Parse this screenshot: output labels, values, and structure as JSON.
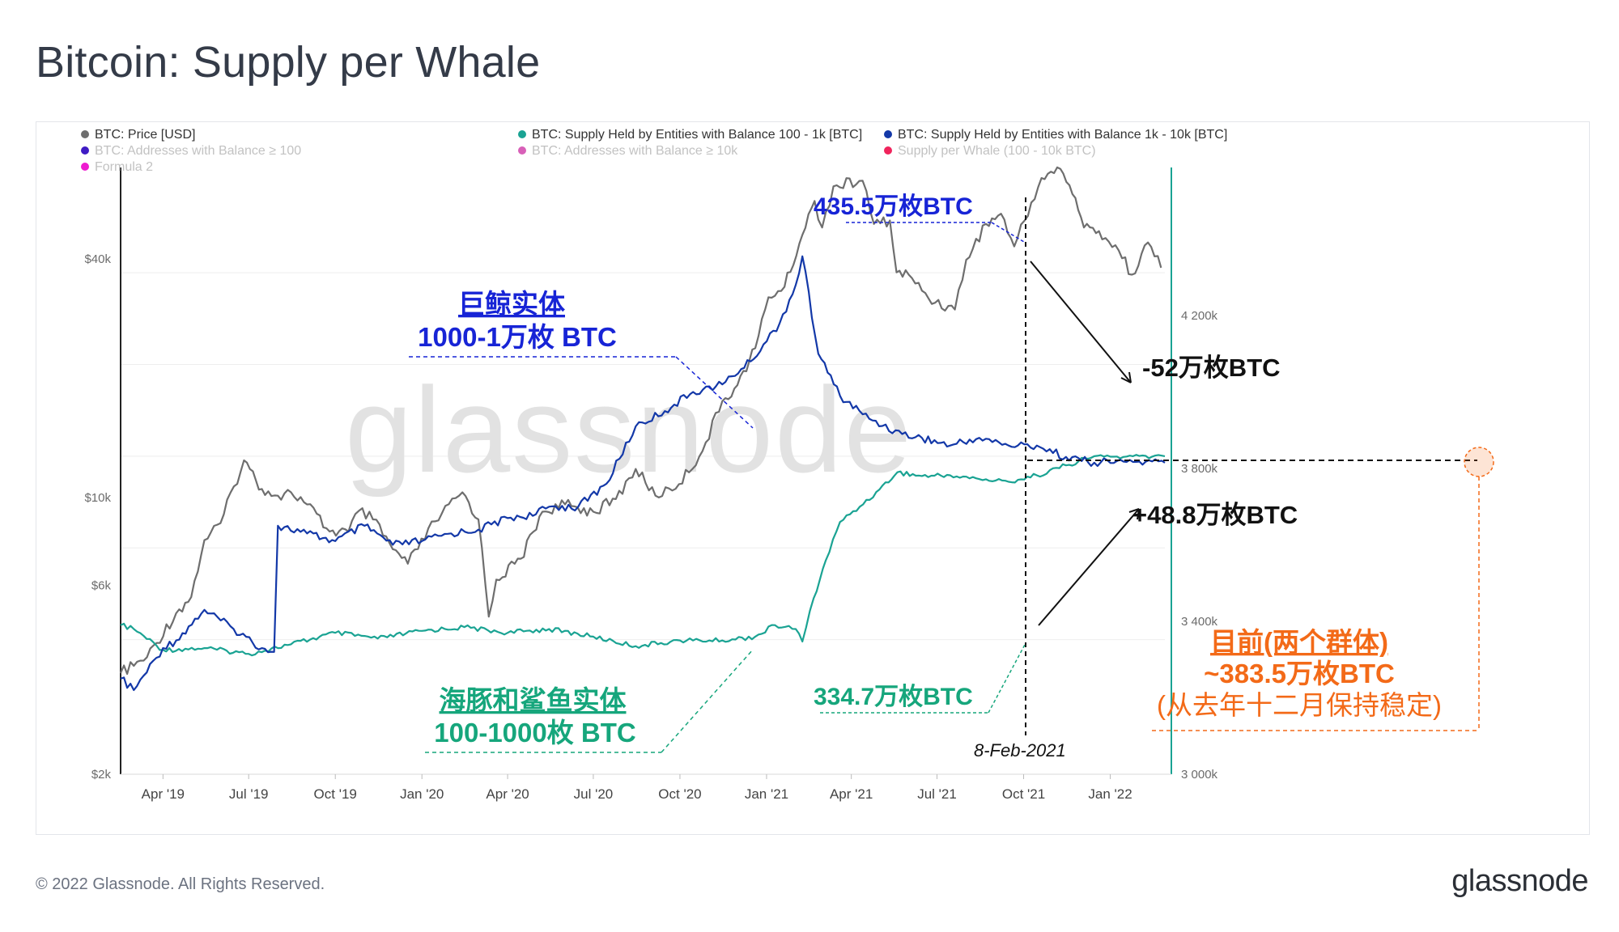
{
  "title": "Bitcoin: Supply per Whale",
  "footer": {
    "copyright": "© 2022 Glassnode. All Rights Reserved.",
    "logo_text": "glassnode"
  },
  "watermark": "glassnode",
  "colors": {
    "price": "#6e6e6e",
    "supply_small": "#1aa393",
    "supply_large": "#1338a8",
    "addr100": "#3f1bc4",
    "addr10k": "#d860b8",
    "supply_per_whale": "#f0245c",
    "formula2": "#ee1bd0",
    "annot_blue": "#1724d6",
    "annot_green": "#16a67c",
    "annot_orange": "#f36a18",
    "right_axis": "#1aa393"
  },
  "legend": [
    {
      "label": "BTC: Price [USD]",
      "color": "#6e6e6e",
      "active": true,
      "icon": "circle-dot-icon"
    },
    {
      "label": "BTC: Supply Held by Entities with Balance 100 - 1k [BTC]",
      "color": "#1aa393",
      "active": true,
      "icon": "circle-dot-icon"
    },
    {
      "label": "BTC: Supply Held by Entities with Balance 1k - 10k [BTC]",
      "color": "#1338a8",
      "active": true,
      "icon": "circle-dot-icon"
    },
    {
      "label": "BTC: Addresses with Balance ≥ 100",
      "color": "#3f1bc4",
      "active": false,
      "icon": "circle-dot-icon"
    },
    {
      "label": "BTC: Addresses with Balance ≥ 10k",
      "color": "#d860b8",
      "active": false,
      "icon": "circle-dot-icon"
    },
    {
      "label": "Supply per Whale (100 - 10k BTC)",
      "color": "#f0245c",
      "active": false,
      "icon": "circle-dot-icon"
    },
    {
      "label": "Formula 2",
      "color": "#ee1bd0",
      "active": false,
      "icon": "circle-dot-icon"
    }
  ],
  "annotations": {
    "peak_large": "435.5万枚BTC",
    "whale_title": "巨鲸实体",
    "whale_range": "1000-1万枚 BTC",
    "drop_large": "-52万枚BTC",
    "rise_small": "+48.8万枚BTC",
    "small_level": "334.7万枚BTC",
    "dolphin_title": "海豚和鲨鱼实体",
    "dolphin_range": "100-1000枚 BTC",
    "current_title": "目前(两个群体)",
    "current_value": "~383.5万枚BTC",
    "current_note": "(从去年十二月保持稳定)",
    "date_marker": "8-Feb-2021"
  },
  "chart_data": {
    "type": "line",
    "x_ticks": [
      "Apr '19",
      "Jul '19",
      "Oct '19",
      "Jan '20",
      "Apr '20",
      "Jul '20",
      "Oct '20",
      "Jan '21",
      "Apr '21",
      "Jul '21",
      "Oct '21",
      "Jan '22"
    ],
    "x_tick_dates": [
      "2019-04-01",
      "2019-07-01",
      "2019-10-01",
      "2020-01-01",
      "2020-04-01",
      "2020-07-01",
      "2020-10-01",
      "2021-01-01",
      "2021-04-01",
      "2021-07-01",
      "2021-10-01",
      "2022-01-01"
    ],
    "x_range": [
      "2019-02-15",
      "2022-02-28"
    ],
    "y_left": {
      "label": "",
      "scale": "log",
      "ticks": [
        "$2k",
        "$6k",
        "$10k",
        "$40k"
      ],
      "tick_values": [
        2000,
        6000,
        10000,
        40000
      ],
      "range": [
        2000,
        70000
      ]
    },
    "y_right": {
      "label": "",
      "scale": "linear",
      "ticks": [
        "3 000k",
        "3 400k",
        "3 800k",
        "4 200k"
      ],
      "tick_values": [
        3000000,
        3400000,
        3800000,
        4200000
      ],
      "range": [
        3000000,
        4600000
      ]
    },
    "grid": true,
    "legend_position": "top-left",
    "series": [
      {
        "name": "BTC: Price [USD]",
        "axis": "left",
        "x": [
          "2019-02-15",
          "2019-03-15",
          "2019-04-15",
          "2019-05-01",
          "2019-05-15",
          "2019-06-01",
          "2019-06-26",
          "2019-07-15",
          "2019-08-01",
          "2019-08-15",
          "2019-09-01",
          "2019-09-25",
          "2019-10-15",
          "2019-10-26",
          "2019-11-10",
          "2019-12-01",
          "2019-12-17",
          "2020-01-15",
          "2020-02-13",
          "2020-03-01",
          "2020-03-12",
          "2020-03-20",
          "2020-04-15",
          "2020-05-08",
          "2020-06-01",
          "2020-07-01",
          "2020-07-25",
          "2020-08-15",
          "2020-09-05",
          "2020-09-30",
          "2020-10-25",
          "2020-11-15",
          "2020-12-01",
          "2020-12-20",
          "2021-01-03",
          "2021-01-20",
          "2021-02-08",
          "2021-02-21",
          "2021-03-01",
          "2021-03-13",
          "2021-04-13",
          "2021-04-25",
          "2021-05-12",
          "2021-05-19",
          "2021-06-01",
          "2021-06-22",
          "2021-07-20",
          "2021-08-01",
          "2021-08-22",
          "2021-09-07",
          "2021-09-21",
          "2021-10-20",
          "2021-11-09",
          "2021-11-25",
          "2021-12-04",
          "2021-12-20",
          "2022-01-10",
          "2022-01-24",
          "2022-02-10",
          "2022-02-24"
        ],
        "values": [
          3600,
          3950,
          5100,
          5600,
          7800,
          8600,
          12400,
          10500,
          10100,
          10300,
          9600,
          8200,
          8200,
          9250,
          8800,
          7400,
          6800,
          8700,
          10300,
          8800,
          5000,
          6200,
          7000,
          9200,
          9600,
          9200,
          9900,
          11800,
          10100,
          10800,
          13100,
          17500,
          19200,
          23800,
          32000,
          34000,
          46000,
          56000,
          48000,
          61000,
          63000,
          49000,
          50000,
          37000,
          36500,
          31800,
          29800,
          39800,
          49000,
          52000,
          43000,
          64000,
          67500,
          57000,
          48000,
          47000,
          42000,
          36500,
          44000,
          38000
        ]
      },
      {
        "name": "BTC: Supply Held by Entities with Balance 100 - 1k [BTC]",
        "axis": "right",
        "x": [
          "2019-02-15",
          "2019-03-01",
          "2019-04-01",
          "2019-05-15",
          "2019-07-01",
          "2019-08-15",
          "2019-10-01",
          "2019-11-15",
          "2020-01-01",
          "2020-02-15",
          "2020-04-01",
          "2020-05-15",
          "2020-07-01",
          "2020-08-15",
          "2020-10-01",
          "2020-11-15",
          "2020-12-20",
          "2021-01-10",
          "2021-02-01",
          "2021-02-08",
          "2021-02-20",
          "2021-03-05",
          "2021-03-20",
          "2021-04-10",
          "2021-05-01",
          "2021-05-20",
          "2021-06-15",
          "2021-07-15",
          "2021-08-15",
          "2021-09-15",
          "2021-10-15",
          "2021-11-15",
          "2021-12-15",
          "2022-01-15",
          "2022-02-28"
        ],
        "values": [
          3390000,
          3380000,
          3325000,
          3330000,
          3315000,
          3340000,
          3370000,
          3355000,
          3375000,
          3385000,
          3370000,
          3380000,
          3360000,
          3335000,
          3350000,
          3350000,
          3360000,
          3390000,
          3380000,
          3347000,
          3460000,
          3560000,
          3660000,
          3700000,
          3745000,
          3790000,
          3780000,
          3782000,
          3772000,
          3765000,
          3782000,
          3808000,
          3832000,
          3830000,
          3832000
        ]
      },
      {
        "name": "BTC: Supply Held by Entities with Balance 1k - 10k [BTC]",
        "axis": "right",
        "x": [
          "2019-02-15",
          "2019-03-01",
          "2019-04-01",
          "2019-04-15",
          "2019-05-15",
          "2019-06-15",
          "2019-07-15",
          "2019-07-28",
          "2019-08-01",
          "2019-09-01",
          "2019-10-01",
          "2019-11-01",
          "2019-12-01",
          "2020-01-01",
          "2020-02-01",
          "2020-03-01",
          "2020-04-01",
          "2020-05-01",
          "2020-05-15",
          "2020-06-15",
          "2020-07-15",
          "2020-08-15",
          "2020-09-15",
          "2020-10-15",
          "2020-11-15",
          "2020-12-15",
          "2021-01-15",
          "2021-02-01",
          "2021-02-08",
          "2021-02-25",
          "2021-03-20",
          "2021-04-20",
          "2021-05-25",
          "2021-06-15",
          "2021-07-15",
          "2021-08-15",
          "2021-09-15",
          "2021-10-15",
          "2021-11-15",
          "2021-12-15",
          "2022-01-15",
          "2022-02-28"
        ],
        "values": [
          3250000,
          3220000,
          3330000,
          3350000,
          3430000,
          3380000,
          3330000,
          3320000,
          3650000,
          3630000,
          3610000,
          3650000,
          3600000,
          3610000,
          3630000,
          3640000,
          3670000,
          3680000,
          3700000,
          3700000,
          3760000,
          3910000,
          3950000,
          4000000,
          4020000,
          4080000,
          4180000,
          4280000,
          4355000,
          4100000,
          3990000,
          3930000,
          3890000,
          3880000,
          3860000,
          3880000,
          3860000,
          3860000,
          3830000,
          3815000,
          3818000,
          3815000
        ]
      }
    ]
  }
}
